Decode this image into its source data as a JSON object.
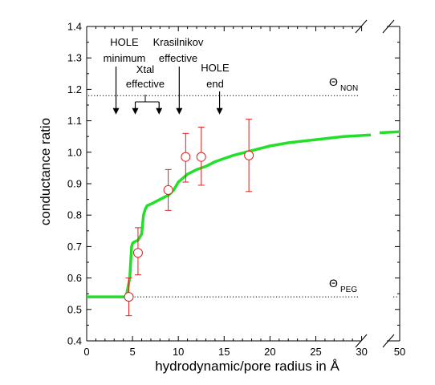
{
  "chart_data": {
    "type": "scatter",
    "xlabel": "hydrodynamic/pore radius in Å",
    "ylabel": "conductance ratio",
    "xlim": [
      0,
      50
    ],
    "ylim": [
      0.4,
      1.4
    ],
    "x_axis_break": {
      "from": 31,
      "to": 50,
      "continues_at": 50
    },
    "x_ticks": [
      0,
      5,
      10,
      15,
      20,
      25,
      30,
      50
    ],
    "x_tick_labels": [
      "0",
      "5",
      "10",
      "15",
      "20",
      "25",
      "30",
      "50"
    ],
    "y_ticks": [
      0.4,
      0.5,
      0.6,
      0.7,
      0.8,
      0.9,
      1.0,
      1.1,
      1.2,
      1.3,
      1.4
    ],
    "y_tick_labels": [
      "0.4",
      "0.5",
      "0.6",
      "0.7",
      "0.8",
      "0.9",
      "1.0",
      "1.1",
      "1.2",
      "1.3",
      "1.4"
    ],
    "grid": false,
    "points": [
      {
        "x": 4.6,
        "y": 0.54,
        "err_low": 0.48,
        "err_high": 0.6
      },
      {
        "x": 5.6,
        "y": 0.68,
        "err_low": 0.61,
        "err_high": 0.76
      },
      {
        "x": 8.9,
        "y": 0.88,
        "err_low": 0.815,
        "err_high": 0.945
      },
      {
        "x": 10.8,
        "y": 0.985,
        "err_low": 0.905,
        "err_high": 1.06
      },
      {
        "x": 12.5,
        "y": 0.985,
        "err_low": 0.895,
        "err_high": 1.08
      },
      {
        "x": 17.7,
        "y": 0.99,
        "err_low": 0.875,
        "err_high": 1.105
      }
    ],
    "marker_color": "#e02020",
    "curve": {
      "color": "#22e02a",
      "x": [
        0,
        4.3,
        4.7,
        4.9,
        5.0,
        5.2,
        5.6,
        6.0,
        6.2,
        6.4,
        6.6,
        7.0,
        8.0,
        9.0,
        9.5,
        10.0,
        11.0,
        12.0,
        13.0,
        14.0,
        15.0,
        16.0,
        18.0,
        20.0,
        22.0,
        25.0,
        28.0,
        31.0
      ],
      "y": [
        0.54,
        0.54,
        0.6,
        0.7,
        0.71,
        0.715,
        0.72,
        0.74,
        0.8,
        0.82,
        0.83,
        0.835,
        0.85,
        0.865,
        0.88,
        0.905,
        0.93,
        0.945,
        0.955,
        0.97,
        0.98,
        0.99,
        1.005,
        1.02,
        1.03,
        1.04,
        1.05,
        1.055
      ],
      "tail_x": [
        50,
        52
      ],
      "tail_y": [
        1.065,
        1.075
      ]
    },
    "reference_lines": [
      {
        "name": "Θ",
        "subscript": "NON",
        "y": 1.18
      },
      {
        "name": "Θ",
        "subscript": "PEG",
        "y": 0.54
      }
    ],
    "annotations": [
      {
        "lines": [
          "HOLE",
          "minimum"
        ],
        "arrow_x": [
          3.2
        ]
      },
      {
        "lines": [
          "Xtal",
          "effective"
        ],
        "arrow_x": [
          5.3,
          7.9
        ]
      },
      {
        "lines": [
          "Krasilnikov",
          "effective"
        ],
        "arrow_x": [
          10.1
        ]
      },
      {
        "lines": [
          "HOLE",
          "end"
        ],
        "arrow_x": [
          14.5
        ]
      }
    ]
  }
}
